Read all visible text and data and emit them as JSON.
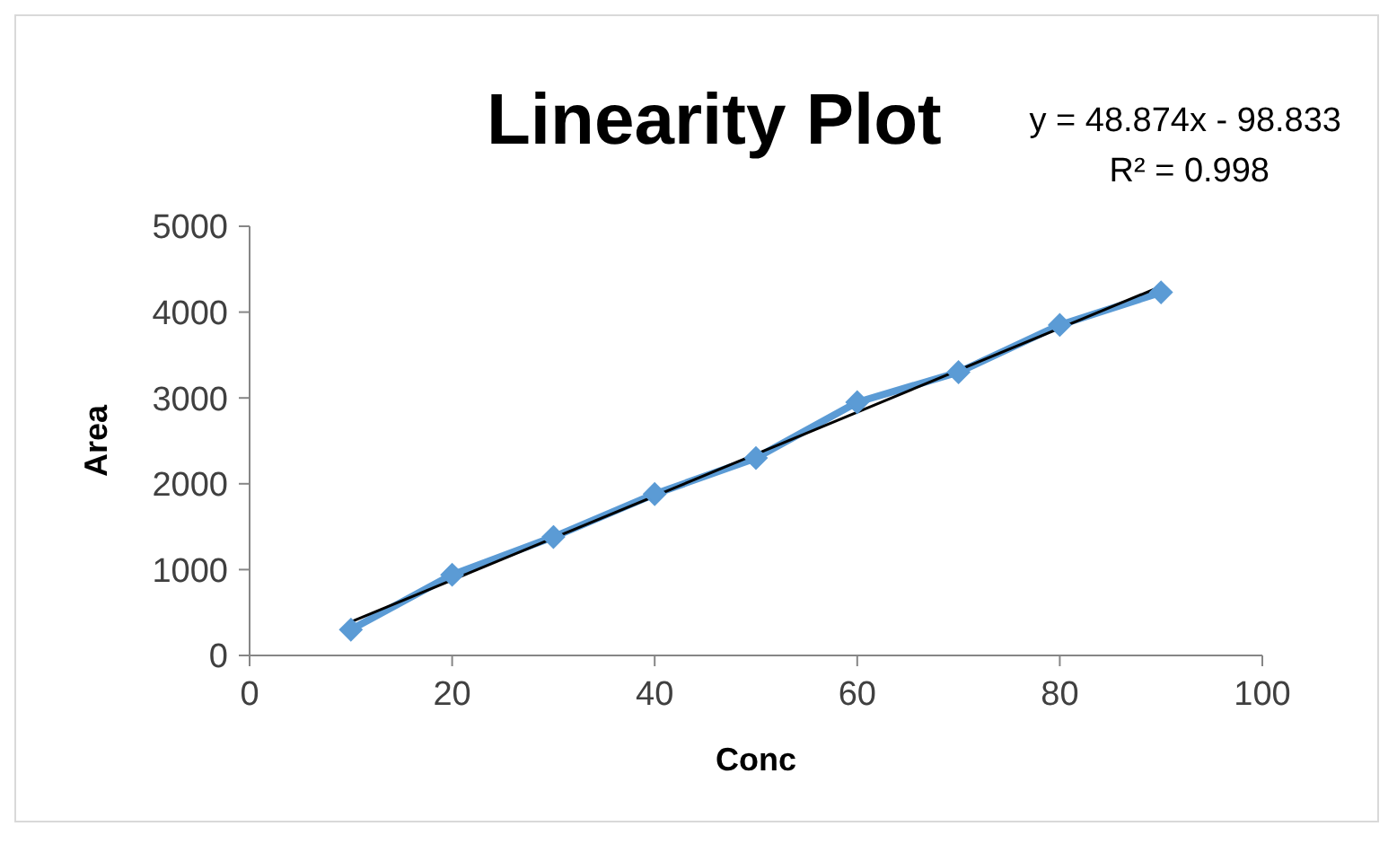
{
  "chart_data": {
    "type": "line",
    "title": "Linearity Plot",
    "xlabel": "Conc",
    "ylabel": "Area",
    "annotations": [
      "y = 48.874x - 98.833",
      "R² = 0.998"
    ],
    "x": [
      10,
      20,
      30,
      40,
      50,
      60,
      70,
      80,
      90
    ],
    "series": [
      {
        "color": "#5b9bd5",
        "values": [
          300,
          940,
          1380,
          1880,
          2300,
          2950,
          3300,
          3850,
          4230
        ],
        "marker": "diamond"
      },
      {
        "type": "line",
        "color": "#000000",
        "x": [
          10,
          90
        ],
        "values": [
          390,
          4300
        ],
        "marker": "none"
      }
    ],
    "xlim": [
      0,
      100
    ],
    "xticks": [
      0,
      20,
      40,
      60,
      80,
      100
    ],
    "ylim": [
      0,
      5000
    ],
    "yticks": [
      0,
      1000,
      2000,
      3000,
      4000,
      5000
    ]
  }
}
